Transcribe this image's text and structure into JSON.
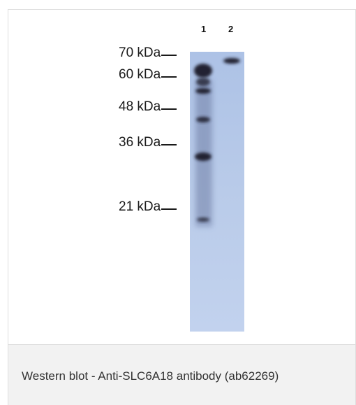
{
  "figure": {
    "lanes": [
      "1",
      "2"
    ],
    "ladder": [
      {
        "label": "70 kDa"
      },
      {
        "label": "60 kDa"
      },
      {
        "label": "48 kDa"
      },
      {
        "label": "36 kDa"
      },
      {
        "label": "21 kDa"
      }
    ],
    "membrane_color": "#b9cbe9",
    "band_color": "#202433"
  },
  "caption": {
    "text": "Western blot - Anti-SLC6A18 antibody (ab62269)"
  }
}
